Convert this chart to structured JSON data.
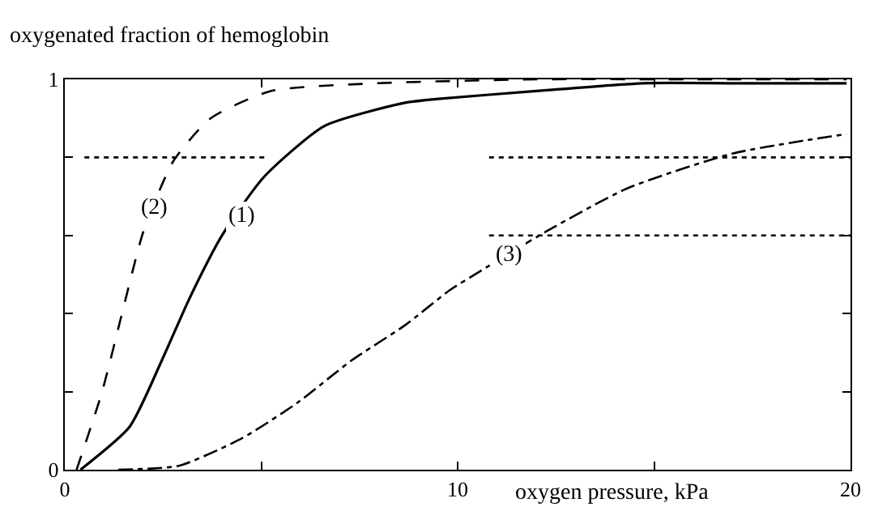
{
  "chart_data": {
    "type": "line",
    "xlabel": "oxygen pressure, kPa",
    "ylabel": "oxygenated fraction of hemoglobin",
    "xlim": [
      0,
      20
    ],
    "ylim": [
      0,
      1
    ],
    "xticks": [
      0,
      {
        "value": 5,
        "label": null
      },
      10,
      {
        "value": 15,
        "label": null
      },
      20
    ],
    "yticks": [
      0,
      {
        "value": 0.2,
        "label": null
      },
      {
        "value": 0.4,
        "label": null
      },
      {
        "value": 0.6,
        "label": null
      },
      {
        "value": 0.8,
        "label": null
      },
      1
    ],
    "series": [
      {
        "color": "#000000",
        "line_style": "solid",
        "x": [
          0.4,
          1.65,
          2.47,
          3.18,
          4.0,
          5.07,
          6.6,
          8.66,
          9.5,
          12,
          14.7,
          17,
          19.9
        ],
        "values": [
          0,
          0.11,
          0.28,
          0.44,
          0.6,
          0.75,
          0.88,
          0.94,
          0.95,
          0.97,
          0.99,
          0.99,
          0.99
        ]
      },
      {
        "color": "#000000",
        "line_style": "dashed",
        "x": [
          0.3,
          0.95,
          1.53,
          2.0,
          2.76,
          3.71,
          5.24,
          7.96,
          12,
          16,
          19.9
        ],
        "values": [
          0,
          0.2,
          0.43,
          0.61,
          0.79,
          0.9,
          0.97,
          0.99,
          1,
          1,
          1
        ]
      },
      {
        "color": "#000000",
        "line_style": "dashdot",
        "x": [
          1.36,
          2.9,
          4.5,
          5.9,
          7.3,
          8.66,
          9.8,
          10.6,
          12.25,
          14.3,
          17.0,
          19.9
        ],
        "values": [
          0,
          0.01,
          0.08,
          0.17,
          0.28,
          0.37,
          0.46,
          0.51,
          0.61,
          0.72,
          0.81,
          0.86
        ]
      },
      {
        "color": "#000000",
        "line_style": "dotted",
        "x": [
          0.5,
          5.1
        ],
        "values": [
          0.8,
          0.8
        ]
      },
      {
        "color": "#000000",
        "line_style": "dotted",
        "x": [
          10.8,
          20
        ],
        "values": [
          0.8,
          0.8
        ]
      },
      {
        "color": "#000000",
        "line_style": "dotted",
        "x": [
          10.8,
          20
        ],
        "values": [
          0.6,
          0.6
        ]
      }
    ],
    "annotations": [
      {
        "text": "(1)",
        "x": 4.5,
        "y": 0.65
      },
      {
        "text": "(2)",
        "x": 2.27,
        "y": 0.67
      },
      {
        "text": "(3)",
        "x": 11.3,
        "y": 0.55
      }
    ]
  }
}
